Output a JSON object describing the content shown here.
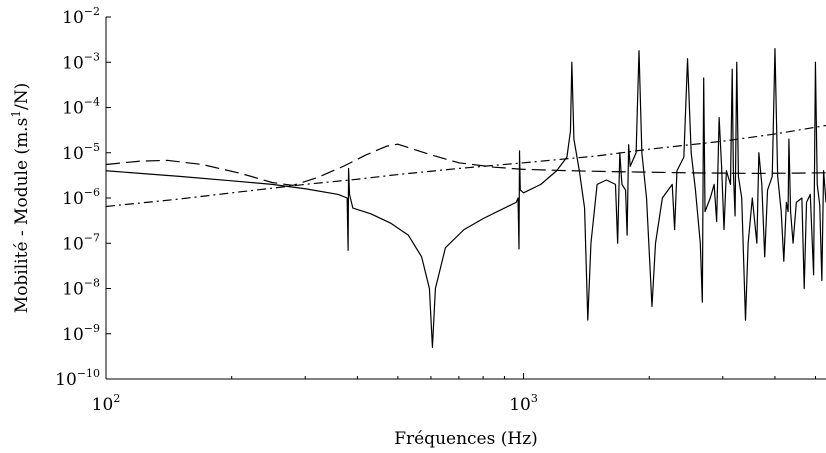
{
  "chart_data": {
    "type": "line",
    "xlabel": "Fréquences (Hz)",
    "ylabel": "Mobilité - Module (m.s$^1$/N)",
    "ylabel_parts": {
      "main": "Mobilité - Module (m.s",
      "sup": "1",
      "end": "/N)"
    },
    "xscale": "log",
    "yscale": "log",
    "xlim": [
      100,
      5300
    ],
    "ylim": [
      1e-10,
      0.01
    ],
    "grid": false,
    "xticks": [
      {
        "value": 100,
        "base": "10",
        "exp": "2"
      },
      {
        "value": 1000,
        "base": "10",
        "exp": "3"
      }
    ],
    "yticks": [
      {
        "value": 1e-10,
        "base": "10",
        "exp": "−10"
      },
      {
        "value": 1e-09,
        "base": "10",
        "exp": "−9"
      },
      {
        "value": 1e-08,
        "base": "10",
        "exp": "−8"
      },
      {
        "value": 1e-07,
        "base": "10",
        "exp": "−7"
      },
      {
        "value": 1e-06,
        "base": "10",
        "exp": "−6"
      },
      {
        "value": 1e-05,
        "base": "10",
        "exp": "−5"
      },
      {
        "value": 0.0001,
        "base": "10",
        "exp": "−4"
      },
      {
        "value": 0.001,
        "base": "10",
        "exp": "−3"
      },
      {
        "value": 0.01,
        "base": "10",
        "exp": "−2"
      }
    ],
    "series": [
      {
        "style": "solid",
        "points": [
          [
            100,
            4e-06
          ],
          [
            150,
            3e-06
          ],
          [
            200,
            2.4e-06
          ],
          [
            250,
            2e-06
          ],
          [
            300,
            1.6e-06
          ],
          [
            360,
            1.2e-06
          ],
          [
            378,
            1e-06
          ],
          [
            380,
            7e-08
          ],
          [
            381,
            4.5e-06
          ],
          [
            383,
            1.2e-06
          ],
          [
            390,
            6e-07
          ],
          [
            430,
            4.5e-07
          ],
          [
            480,
            2.8e-07
          ],
          [
            530,
            1.5e-07
          ],
          [
            570,
            5e-08
          ],
          [
            595,
            1e-08
          ],
          [
            605,
            5e-10
          ],
          [
            615,
            1e-08
          ],
          [
            650,
            8e-08
          ],
          [
            720,
            2e-07
          ],
          [
            800,
            3.5e-07
          ],
          [
            900,
            6e-07
          ],
          [
            960,
            8e-07
          ],
          [
            970,
            1e-06
          ],
          [
            975,
            7.5e-08
          ],
          [
            978,
            1.1e-05
          ],
          [
            982,
            1.5e-06
          ],
          [
            1000,
            1.3e-06
          ],
          [
            1100,
            2e-06
          ],
          [
            1200,
            4e-06
          ],
          [
            1270,
            8e-06
          ],
          [
            1295,
            3e-05
          ],
          [
            1305,
            0.001
          ],
          [
            1320,
            2e-05
          ],
          [
            1360,
            4e-06
          ],
          [
            1400,
            6e-07
          ],
          [
            1425,
            2e-09
          ],
          [
            1450,
            1e-07
          ],
          [
            1500,
            2e-06
          ],
          [
            1580,
            2.5e-06
          ],
          [
            1660,
            2e-06
          ],
          [
            1680,
            1e-07
          ],
          [
            1700,
            1e-05
          ],
          [
            1720,
            2e-06
          ],
          [
            1755,
            1.5e-06
          ],
          [
            1770,
            1.5e-07
          ],
          [
            1785,
            1.5e-05
          ],
          [
            1800,
            5e-06
          ],
          [
            1860,
            1e-05
          ],
          [
            1890,
            0.0018
          ],
          [
            1920,
            1e-05
          ],
          [
            1970,
            1e-06
          ],
          [
            2030,
            4e-09
          ],
          [
            2070,
            1e-07
          ],
          [
            2150,
            1e-06
          ],
          [
            2270,
            2e-06
          ],
          [
            2300,
            2e-07
          ],
          [
            2330,
            4e-06
          ],
          [
            2420,
            8e-06
          ],
          [
            2470,
            0.0012
          ],
          [
            2520,
            1e-05
          ],
          [
            2580,
            1.5e-06
          ],
          [
            2650,
            1e-07
          ],
          [
            2680,
            5e-09
          ],
          [
            2700,
            0.00045
          ],
          [
            2720,
            5e-07
          ],
          [
            2800,
            1e-06
          ],
          [
            2860,
            2e-06
          ],
          [
            2900,
            3e-07
          ],
          [
            2940,
            6e-05
          ],
          [
            2980,
            5e-06
          ],
          [
            3020,
            2e-07
          ],
          [
            3060,
            4e-06
          ],
          [
            3130,
            2e-06
          ],
          [
            3160,
            0.0007
          ],
          [
            3180,
            4e-06
          ],
          [
            3210,
            4e-07
          ],
          [
            3240,
            0.001
          ],
          [
            3270,
            3e-06
          ],
          [
            3330,
            1e-06
          ],
          [
            3400,
            2e-09
          ],
          [
            3450,
            1e-07
          ],
          [
            3530,
            1e-06
          ],
          [
            3620,
            1e-07
          ],
          [
            3660,
            1e-05
          ],
          [
            3720,
            2e-06
          ],
          [
            3780,
            5e-08
          ],
          [
            3840,
            1.5e-06
          ],
          [
            3940,
            3e-06
          ],
          [
            4000,
            0.002
          ],
          [
            4060,
            3e-06
          ],
          [
            4140,
            5e-07
          ],
          [
            4200,
            4e-08
          ],
          [
            4260,
            8e-07
          ],
          [
            4300,
            5e-07
          ],
          [
            4320,
            2e-05
          ],
          [
            4360,
            5e-07
          ],
          [
            4420,
            1e-07
          ],
          [
            4500,
            8e-07
          ],
          [
            4640,
            1e-06
          ],
          [
            4700,
            1e-08
          ],
          [
            4760,
            8e-07
          ],
          [
            4860,
            1.2e-06
          ],
          [
            4950,
            2e-08
          ],
          [
            5000,
            0.001
          ],
          [
            5050,
            2e-06
          ],
          [
            5120,
            7e-07
          ],
          [
            5180,
            1.5e-08
          ],
          [
            5230,
            4e-06
          ],
          [
            5300,
            8e-07
          ]
        ]
      },
      {
        "style": "dashed",
        "points": [
          [
            100,
            5.5e-06
          ],
          [
            120,
            6.5e-06
          ],
          [
            140,
            6.8e-06
          ],
          [
            170,
            5.5e-06
          ],
          [
            210,
            3.5e-06
          ],
          [
            250,
            2.2e-06
          ],
          [
            280,
            1.9e-06
          ],
          [
            320,
            2.8e-06
          ],
          [
            370,
            5e-06
          ],
          [
            420,
            9e-06
          ],
          [
            470,
            1.4e-05
          ],
          [
            500,
            1.55e-05
          ],
          [
            530,
            1.3e-05
          ],
          [
            600,
            9e-06
          ],
          [
            700,
            6e-06
          ],
          [
            850,
            4.8e-06
          ],
          [
            1000,
            4.3e-06
          ],
          [
            1300,
            4e-06
          ],
          [
            1700,
            3.8e-06
          ],
          [
            2500,
            3.6e-06
          ],
          [
            3500,
            3.5e-06
          ],
          [
            4500,
            3.55e-06
          ],
          [
            5300,
            3.6e-06
          ]
        ]
      },
      {
        "style": "dashdot",
        "points": [
          [
            100,
            6.5e-07
          ],
          [
            150,
            9.5e-07
          ],
          [
            200,
            1.3e-06
          ],
          [
            300,
            2e-06
          ],
          [
            400,
            2.6e-06
          ],
          [
            500,
            3.3e-06
          ],
          [
            700,
            4.5e-06
          ],
          [
            1000,
            6e-06
          ],
          [
            1500,
            8.5e-06
          ],
          [
            2000,
            1.2e-05
          ],
          [
            3000,
            1.8e-05
          ],
          [
            4000,
            2.6e-05
          ],
          [
            5300,
            4e-05
          ]
        ]
      }
    ]
  }
}
